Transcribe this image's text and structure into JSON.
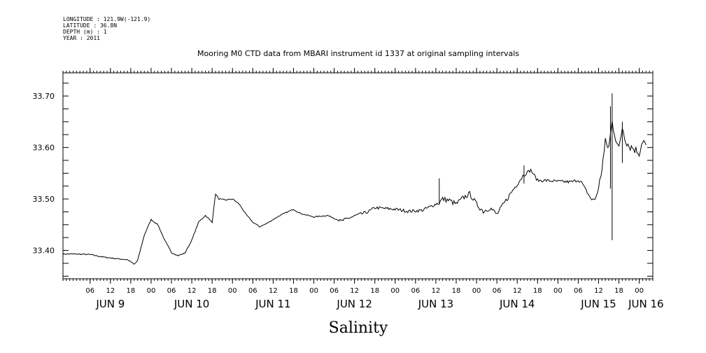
{
  "header": {
    "longitude": "LONGITUDE : 121.9W(-121.9)",
    "latitude": "LATITUDE : 36.8N",
    "depth": "DEPTH (m) : 1",
    "year": "YEAR : 2011"
  },
  "chart_data": {
    "type": "line",
    "title": "Mooring M0 CTD data from MBARI instrument id 1337 at original sampling intervals",
    "xlabel": "Salinity",
    "ylabel": "",
    "ylim": [
      33.345,
      33.745
    ],
    "xlim": [
      "2011-06-08T22:00",
      "2011-06-16T04:00"
    ],
    "yticks": [
      33.4,
      33.5,
      33.6,
      33.7
    ],
    "ytick_labels": [
      "33.40",
      "33.50",
      "33.60",
      "33.70"
    ],
    "x_hour_ticks": [
      {
        "t": "2011-06-09T06:00",
        "label": "06"
      },
      {
        "t": "2011-06-09T12:00",
        "label": "12"
      },
      {
        "t": "2011-06-09T18:00",
        "label": "18"
      },
      {
        "t": "2011-06-10T00:00",
        "label": "00"
      },
      {
        "t": "2011-06-10T06:00",
        "label": "06"
      },
      {
        "t": "2011-06-10T12:00",
        "label": "12"
      },
      {
        "t": "2011-06-10T18:00",
        "label": "18"
      },
      {
        "t": "2011-06-11T00:00",
        "label": "00"
      },
      {
        "t": "2011-06-11T06:00",
        "label": "06"
      },
      {
        "t": "2011-06-11T12:00",
        "label": "12"
      },
      {
        "t": "2011-06-11T18:00",
        "label": "18"
      },
      {
        "t": "2011-06-12T00:00",
        "label": "00"
      },
      {
        "t": "2011-06-12T06:00",
        "label": "06"
      },
      {
        "t": "2011-06-12T12:00",
        "label": "12"
      },
      {
        "t": "2011-06-12T18:00",
        "label": "18"
      },
      {
        "t": "2011-06-13T00:00",
        "label": "00"
      },
      {
        "t": "2011-06-13T06:00",
        "label": "06"
      },
      {
        "t": "2011-06-13T12:00",
        "label": "12"
      },
      {
        "t": "2011-06-13T18:00",
        "label": "18"
      },
      {
        "t": "2011-06-14T00:00",
        "label": "00"
      },
      {
        "t": "2011-06-14T06:00",
        "label": "06"
      },
      {
        "t": "2011-06-14T12:00",
        "label": "12"
      },
      {
        "t": "2011-06-14T18:00",
        "label": "18"
      },
      {
        "t": "2011-06-15T00:00",
        "label": "00"
      },
      {
        "t": "2011-06-15T06:00",
        "label": "06"
      },
      {
        "t": "2011-06-15T12:00",
        "label": "12"
      },
      {
        "t": "2011-06-15T18:00",
        "label": "18"
      },
      {
        "t": "2011-06-16T00:00",
        "label": "00"
      }
    ],
    "x_day_labels": [
      {
        "t": "2011-06-09T12:00",
        "label": "JUN  9"
      },
      {
        "t": "2011-06-10T12:00",
        "label": "JUN 10"
      },
      {
        "t": "2011-06-11T12:00",
        "label": "JUN 11"
      },
      {
        "t": "2011-06-12T12:00",
        "label": "JUN 12"
      },
      {
        "t": "2011-06-13T12:00",
        "label": "JUN 13"
      },
      {
        "t": "2011-06-14T12:00",
        "label": "JUN 14"
      },
      {
        "t": "2011-06-15T12:00",
        "label": "JUN 15"
      },
      {
        "t": "2011-06-16T02:00",
        "label": "JUN 16"
      }
    ],
    "series": [
      {
        "color": "#000000",
        "x": [
          "2011-06-08T22:00",
          "2011-06-09T02:00",
          "2011-06-09T06:00",
          "2011-06-09T10:00",
          "2011-06-09T14:00",
          "2011-06-09T17:00",
          "2011-06-09T18:00",
          "2011-06-09T19:00",
          "2011-06-09T20:00",
          "2011-06-09T22:00",
          "2011-06-10T00:00",
          "2011-06-10T02:00",
          "2011-06-10T04:00",
          "2011-06-10T06:00",
          "2011-06-10T08:00",
          "2011-06-10T10:00",
          "2011-06-10T12:00",
          "2011-06-10T14:00",
          "2011-06-10T16:00",
          "2011-06-10T18:00",
          "2011-06-10T19:00",
          "2011-06-10T20:00",
          "2011-06-10T22:00",
          "2011-06-11T00:00",
          "2011-06-11T02:00",
          "2011-06-11T04:00",
          "2011-06-11T06:00",
          "2011-06-11T08:00",
          "2011-06-11T10:00",
          "2011-06-11T14:00",
          "2011-06-11T18:00",
          "2011-06-11T20:00",
          "2011-06-12T00:00",
          "2011-06-12T04:00",
          "2011-06-12T08:00",
          "2011-06-12T12:00",
          "2011-06-12T16:00",
          "2011-06-12T18:00",
          "2011-06-12T20:00",
          "2011-06-13T00:00",
          "2011-06-13T04:00",
          "2011-06-13T08:00",
          "2011-06-13T12:00",
          "2011-06-13T13:00",
          "2011-06-13T14:00",
          "2011-06-13T16:00",
          "2011-06-13T18:00",
          "2011-06-13T20:00",
          "2011-06-13T22:00",
          "2011-06-14T00:00",
          "2011-06-14T02:00",
          "2011-06-14T04:00",
          "2011-06-14T06:00",
          "2011-06-14T08:00",
          "2011-06-14T10:00",
          "2011-06-14T12:00",
          "2011-06-14T14:00",
          "2011-06-14T16:00",
          "2011-06-14T18:00",
          "2011-06-14T20:00",
          "2011-06-15T00:00",
          "2011-06-15T04:00",
          "2011-06-15T06:00",
          "2011-06-15T07:00",
          "2011-06-15T08:00",
          "2011-06-15T10:00",
          "2011-06-15T11:00",
          "2011-06-15T12:00",
          "2011-06-15T13:00",
          "2011-06-15T14:00",
          "2011-06-15T15:00",
          "2011-06-15T16:00",
          "2011-06-15T17:00",
          "2011-06-15T18:00",
          "2011-06-15T19:00",
          "2011-06-15T20:00",
          "2011-06-15T21:00",
          "2011-06-15T22:00",
          "2011-06-16T00:00",
          "2011-06-16T01:00",
          "2011-06-16T02:00"
        ],
        "y": [
          33.393,
          33.393,
          33.392,
          33.387,
          33.384,
          33.382,
          33.378,
          33.373,
          33.38,
          33.43,
          33.46,
          33.45,
          33.42,
          33.396,
          33.39,
          33.395,
          33.42,
          33.455,
          33.468,
          33.455,
          33.51,
          33.5,
          33.498,
          33.5,
          33.49,
          33.47,
          33.455,
          33.446,
          33.452,
          33.468,
          33.48,
          33.472,
          33.465,
          33.468,
          33.457,
          33.467,
          33.475,
          33.483,
          33.482,
          33.48,
          33.476,
          33.478,
          33.49,
          33.493,
          33.5,
          33.497,
          33.49,
          33.502,
          33.51,
          33.49,
          33.476,
          33.483,
          33.47,
          33.49,
          33.51,
          33.53,
          33.548,
          33.556,
          33.536,
          33.536,
          33.534,
          33.533,
          33.537,
          33.532,
          33.52,
          33.498,
          33.5,
          33.52,
          33.56,
          33.61,
          33.6,
          33.65,
          33.62,
          33.596,
          33.64,
          33.615,
          33.603,
          33.6,
          33.59,
          33.615,
          33.605
        ]
      }
    ]
  }
}
